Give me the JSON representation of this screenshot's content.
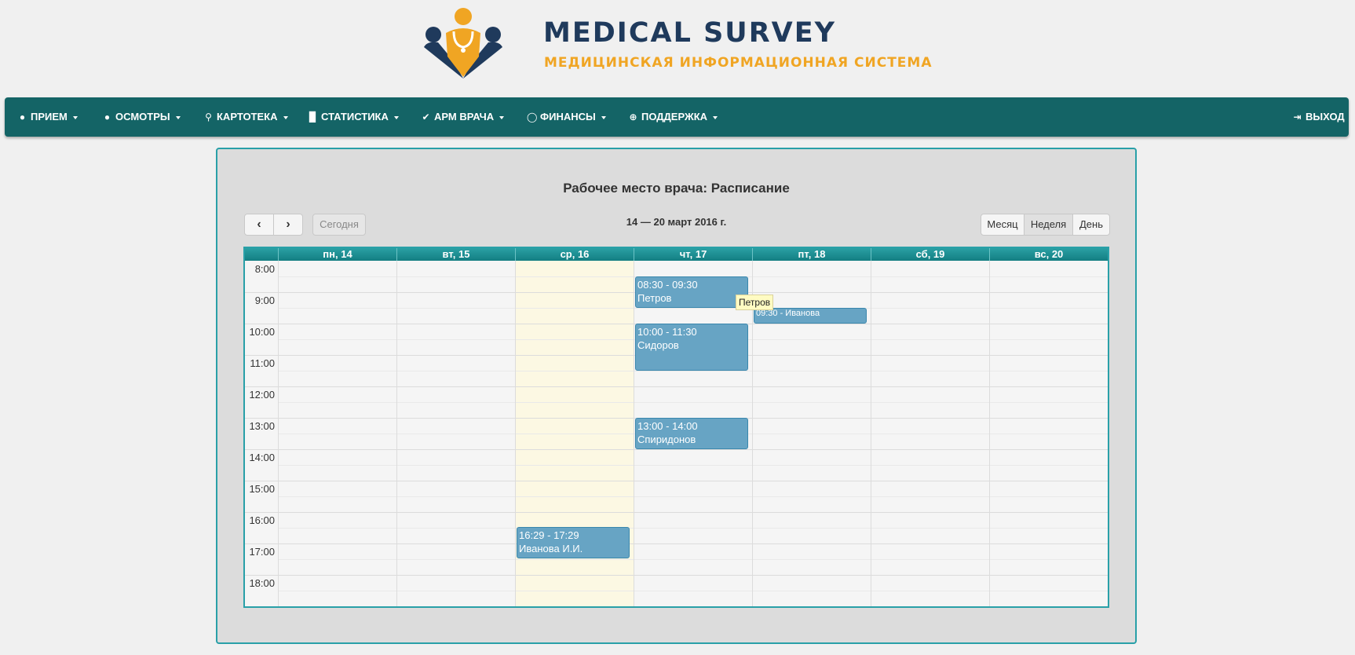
{
  "brand": {
    "title": "MEDICAL SURVEY",
    "subtitle": "МЕДИЦИНСКАЯ ИНФОРМАЦИОННАЯ СИСТЕМА",
    "colors": {
      "navy": "#1f3a5c",
      "orange": "#f0a523",
      "teal": "#146466"
    }
  },
  "nav": {
    "items": [
      {
        "label": "ПРИЕМ",
        "icon": "user-icon"
      },
      {
        "label": "ОСМОТРЫ",
        "icon": "user-check-icon"
      },
      {
        "label": "КАРТОТЕКА",
        "icon": "search-icon"
      },
      {
        "label": "СТАТИСТИКА",
        "icon": "bar-chart-icon"
      },
      {
        "label": "АРМ ВРАЧА",
        "icon": "checkmark-icon"
      },
      {
        "label": "ФИНАНСЫ",
        "icon": "coin-icon"
      },
      {
        "label": "ПОДДЕРЖКА",
        "icon": "lifebuoy-icon"
      }
    ],
    "logout": {
      "label": "ВЫХОД",
      "icon": "logout-icon"
    }
  },
  "page": {
    "title": "Рабочее место врача: Расписание",
    "date_range": "14 — 20 март 2016 г.",
    "prev": "‹",
    "next": "›",
    "today": "Сегодня",
    "views": {
      "month": "Месяц",
      "week": "Неделя",
      "day": "День"
    }
  },
  "calendar": {
    "days": [
      "пн, 14",
      "вт, 15",
      "ср, 16",
      "чт, 17",
      "пт, 18",
      "сб, 19",
      "вс, 20"
    ],
    "highlighted_day": "ср, 16",
    "times": [
      "8:00",
      "9:00",
      "10:00",
      "11:00",
      "12:00",
      "13:00",
      "14:00",
      "15:00",
      "16:00",
      "17:00",
      "18:00"
    ],
    "events": [
      {
        "day": "чт, 17",
        "time": "08:30 - 09:30",
        "name": "Петров"
      },
      {
        "day": "чт, 17",
        "time": "10:00 - 11:30",
        "name": "Сидоров"
      },
      {
        "day": "чт, 17",
        "time": "13:00 - 14:00",
        "name": "Спиридонов"
      },
      {
        "day": "ср, 16",
        "time": "16:29 - 17:29",
        "name": "Иванова И.И."
      },
      {
        "day": "пт, 18",
        "label": "09:30 - Иванова"
      }
    ],
    "tooltip": "Петров"
  }
}
